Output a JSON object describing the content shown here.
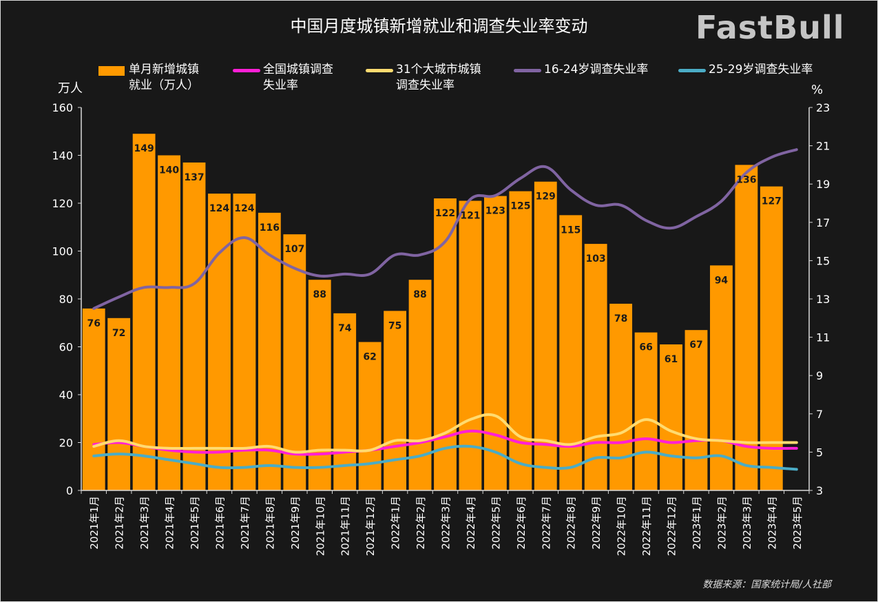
{
  "chart_data": {
    "type": "bar+line",
    "title": "中国月度城镇新增就业和调查失业率变动",
    "left_axis": {
      "unit": "万人",
      "range": [
        0,
        160
      ],
      "ticks": [
        0,
        20,
        40,
        60,
        80,
        100,
        120,
        140,
        160
      ]
    },
    "right_axis": {
      "unit": "%",
      "range": [
        3,
        23
      ],
      "ticks": [
        3,
        5,
        7,
        9,
        11,
        13,
        15,
        17,
        19,
        21,
        23
      ]
    },
    "categories": [
      "2021年1月",
      "2021年2月",
      "2021年3月",
      "2021年4月",
      "2021年5月",
      "2021年6月",
      "2021年7月",
      "2021年8月",
      "2021年9月",
      "2021年10月",
      "2021年11月",
      "2021年12月",
      "2022年1月",
      "2022年2月",
      "2022年3月",
      "2022年4月",
      "2022年5月",
      "2022年6月",
      "2022年7月",
      "2022年8月",
      "2022年9月",
      "2022年10月",
      "2022年11月",
      "2022年12月",
      "2023年1月",
      "2023年2月",
      "2023年3月",
      "2023年4月",
      "2023年5月"
    ],
    "bars": {
      "name": "单月新增城镇就业（万人）",
      "color": "#ff9900",
      "values": [
        76,
        72,
        149,
        140,
        137,
        124,
        124,
        116,
        107,
        88,
        74,
        62,
        75,
        88,
        122,
        121,
        123,
        125,
        129,
        115,
        103,
        78,
        66,
        61,
        67,
        94,
        136,
        127,
        null
      ]
    },
    "series": [
      {
        "name": "全国城镇调查失业率",
        "color": "#ff1fd6",
        "values": [
          5.4,
          5.5,
          5.3,
          5.1,
          5.0,
          5.0,
          5.1,
          5.1,
          4.9,
          4.9,
          5.0,
          5.1,
          5.3,
          5.5,
          5.8,
          6.1,
          5.9,
          5.5,
          5.4,
          5.3,
          5.5,
          5.5,
          5.7,
          5.5,
          5.6,
          5.6,
          5.3,
          5.2,
          5.2
        ]
      },
      {
        "name": "31个大城市城镇调查失业率",
        "color": "#ffdb70",
        "values": [
          5.3,
          5.6,
          5.3,
          5.2,
          5.2,
          5.2,
          5.2,
          5.3,
          5.0,
          5.1,
          5.1,
          5.1,
          5.6,
          5.6,
          6.0,
          6.7,
          6.9,
          5.8,
          5.6,
          5.4,
          5.8,
          6.0,
          6.7,
          6.1,
          5.7,
          5.6,
          5.5,
          5.5,
          5.5
        ]
      },
      {
        "name": "16-24岁调查失业率",
        "color": "#8064a2",
        "values": [
          12.5,
          13.1,
          13.6,
          13.6,
          13.8,
          15.4,
          16.2,
          15.3,
          14.6,
          14.2,
          14.3,
          14.3,
          15.3,
          15.3,
          16.0,
          18.2,
          18.4,
          19.3,
          19.9,
          18.7,
          17.9,
          17.9,
          17.1,
          16.7,
          17.3,
          18.1,
          19.6,
          20.4,
          20.8
        ]
      },
      {
        "name": "25-29岁调查失业率",
        "color": "#4bacc6",
        "values": [
          4.8,
          4.9,
          4.8,
          4.6,
          4.4,
          4.2,
          4.2,
          4.3,
          4.2,
          4.2,
          4.3,
          4.4,
          4.6,
          4.8,
          5.2,
          5.3,
          5.0,
          4.4,
          4.2,
          4.2,
          4.7,
          4.7,
          5.0,
          4.8,
          4.7,
          4.8,
          4.3,
          4.2,
          4.1
        ]
      }
    ],
    "legend": {
      "placement": "top",
      "labels": [
        "单月新增城镇\n就业（万人）",
        "全国城镇调查\n失业率",
        "31个大城市城镇\n调查失业率",
        "16-24岁调查失业率",
        "25-29岁调查失业率"
      ]
    },
    "grid": false
  },
  "source": "数据来源：国家统计局/人社部",
  "watermark": "FastBull"
}
